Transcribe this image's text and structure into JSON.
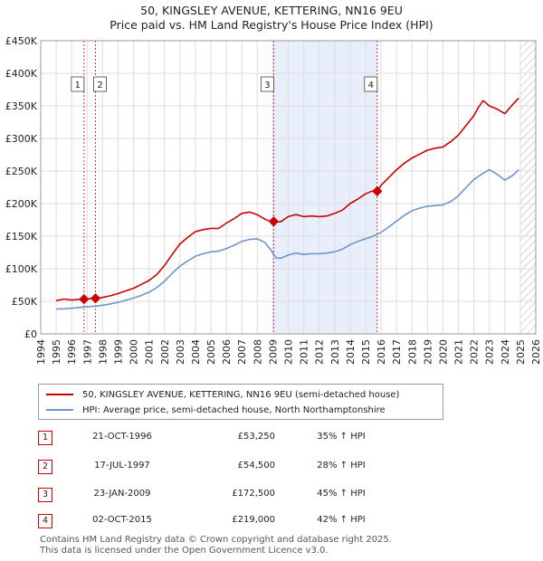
{
  "title_line1": "50, KINGSLEY AVENUE, KETTERING, NN16 9EU",
  "title_line2": "Price paid vs. HM Land Registry's House Price Index (HPI)",
  "chart_data": {
    "type": "line",
    "xlim": [
      1994,
      2026
    ],
    "ylim": [
      0,
      450000
    ],
    "y_ticks": [
      0,
      50000,
      100000,
      150000,
      200000,
      250000,
      300000,
      350000,
      400000,
      450000
    ],
    "y_tick_labels": [
      "£0",
      "£50K",
      "£100K",
      "£150K",
      "£200K",
      "£250K",
      "£300K",
      "£350K",
      "£400K",
      "£450K"
    ],
    "x_ticks": [
      1994,
      1995,
      1996,
      1997,
      1998,
      1999,
      2000,
      2001,
      2002,
      2003,
      2004,
      2005,
      2006,
      2007,
      2008,
      2009,
      2010,
      2011,
      2012,
      2013,
      2014,
      2015,
      2016,
      2017,
      2018,
      2019,
      2020,
      2021,
      2022,
      2023,
      2024,
      2025,
      2026
    ],
    "x_tick_labels": [
      "1994",
      "1995",
      "1996",
      "1997",
      "1998",
      "1999",
      "2000",
      "2001",
      "2002",
      "2003",
      "2004",
      "2005",
      "2006",
      "2007",
      "2008",
      "2009",
      "2010",
      "2011",
      "2012",
      "2013",
      "2014",
      "2015",
      "2016",
      "2017",
      "2018",
      "2019",
      "2020",
      "2021",
      "2022",
      "2023",
      "2024",
      "2025",
      "2026"
    ],
    "grid": true,
    "shaded_spans": [
      [
        2009.06,
        2015.75
      ]
    ],
    "hatched_from": 2025.0,
    "series": [
      {
        "name": "50, KINGSLEY AVENUE, KETTERING, NN16 9EU (semi-detached house)",
        "color": "#cc0000",
        "x": [
          1995.0,
          1995.5,
          1996.0,
          1996.5,
          1996.8,
          1997.2,
          1997.54,
          1998.0,
          1998.5,
          1999.0,
          1999.5,
          2000.0,
          2000.5,
          2001.0,
          2001.5,
          2002.0,
          2002.5,
          2003.0,
          2003.5,
          2004.0,
          2004.5,
          2005.0,
          2005.5,
          2006.0,
          2006.5,
          2007.0,
          2007.5,
          2008.0,
          2008.5,
          2008.9,
          2009.06,
          2009.5,
          2010.0,
          2010.5,
          2011.0,
          2011.5,
          2012.0,
          2012.5,
          2013.0,
          2013.5,
          2014.0,
          2014.5,
          2015.0,
          2015.4,
          2015.75,
          2016.0,
          2016.5,
          2017.0,
          2017.5,
          2018.0,
          2018.5,
          2019.0,
          2019.5,
          2020.0,
          2020.5,
          2021.0,
          2021.5,
          2022.0,
          2022.3,
          2022.6,
          2023.0,
          2023.5,
          2024.0,
          2024.5,
          2024.9
        ],
        "values": [
          51000,
          53500,
          52000,
          53000,
          53250,
          54000,
          54500,
          56000,
          58500,
          62000,
          66000,
          70000,
          76000,
          82000,
          91000,
          105000,
          122000,
          138000,
          148000,
          157000,
          160000,
          162000,
          162000,
          170000,
          177000,
          185000,
          187000,
          183000,
          176000,
          172000,
          172500,
          172000,
          180000,
          183000,
          180000,
          181000,
          180000,
          181000,
          185000,
          190000,
          200000,
          207000,
          215000,
          219000,
          219000,
          228000,
          240000,
          252000,
          262000,
          270000,
          276000,
          282000,
          285000,
          287000,
          295000,
          305000,
          320000,
          335000,
          348000,
          358000,
          350000,
          345000,
          338000,
          352000,
          362000
        ]
      },
      {
        "name": "HPI: Average price, semi-detached house, North Northamptonshire",
        "color": "#6e95cc",
        "x": [
          1995.0,
          1995.5,
          1996.0,
          1996.5,
          1997.0,
          1997.5,
          1998.0,
          1998.5,
          1999.0,
          1999.5,
          2000.0,
          2000.5,
          2001.0,
          2001.5,
          2002.0,
          2002.5,
          2003.0,
          2003.5,
          2004.0,
          2004.5,
          2005.0,
          2005.5,
          2006.0,
          2006.5,
          2007.0,
          2007.5,
          2008.0,
          2008.5,
          2008.9,
          2009.2,
          2009.5,
          2010.0,
          2010.5,
          2011.0,
          2011.5,
          2012.0,
          2012.5,
          2013.0,
          2013.5,
          2014.0,
          2014.5,
          2015.0,
          2015.5,
          2016.0,
          2016.5,
          2017.0,
          2017.5,
          2018.0,
          2018.5,
          2019.0,
          2019.5,
          2020.0,
          2020.5,
          2021.0,
          2021.5,
          2022.0,
          2022.5,
          2023.0,
          2023.5,
          2024.0,
          2024.5,
          2024.9
        ],
        "values": [
          38000,
          38500,
          39500,
          40500,
          41500,
          42500,
          44000,
          46000,
          48500,
          51500,
          55000,
          59000,
          64000,
          71000,
          81000,
          93000,
          104000,
          112000,
          119000,
          123000,
          126000,
          127000,
          131000,
          136000,
          142000,
          145000,
          146000,
          140000,
          128000,
          117000,
          116000,
          121000,
          124000,
          122000,
          123000,
          123000,
          124000,
          126000,
          130000,
          137000,
          142000,
          146000,
          150000,
          156000,
          164000,
          173000,
          182000,
          189000,
          193000,
          196000,
          197000,
          198000,
          203000,
          212000,
          225000,
          237000,
          245000,
          252000,
          245000,
          236000,
          243000,
          252000
        ]
      }
    ],
    "sales": [
      {
        "label": "1",
        "x": 1996.8,
        "value": 53250
      },
      {
        "label": "2",
        "x": 1997.54,
        "value": 54500
      },
      {
        "label": "3",
        "x": 2009.06,
        "value": 172500
      },
      {
        "label": "4",
        "x": 2015.75,
        "value": 219000
      }
    ]
  },
  "legend": {
    "property_label": "50, KINGSLEY AVENUE, KETTERING, NN16 9EU (semi-detached house)",
    "hpi_label": "HPI: Average price, semi-detached house, North Northamptonshire"
  },
  "transactions": [
    {
      "num": "1",
      "date": "21-OCT-1996",
      "price": "£53,250",
      "hpi": "35% ↑ HPI"
    },
    {
      "num": "2",
      "date": "17-JUL-1997",
      "price": "£54,500",
      "hpi": "28% ↑ HPI"
    },
    {
      "num": "3",
      "date": "23-JAN-2009",
      "price": "£172,500",
      "hpi": "45% ↑ HPI"
    },
    {
      "num": "4",
      "date": "02-OCT-2015",
      "price": "£219,000",
      "hpi": "42% ↑ HPI"
    }
  ],
  "footer": {
    "line1": "Contains HM Land Registry data © Crown copyright and database right 2025.",
    "line2": "This data is licensed under the Open Government Licence v3.0."
  },
  "colors": {
    "property": "#cc0000",
    "hpi": "#6e95cc",
    "shade": "#e8eefa",
    "grid": "#dddddd"
  }
}
